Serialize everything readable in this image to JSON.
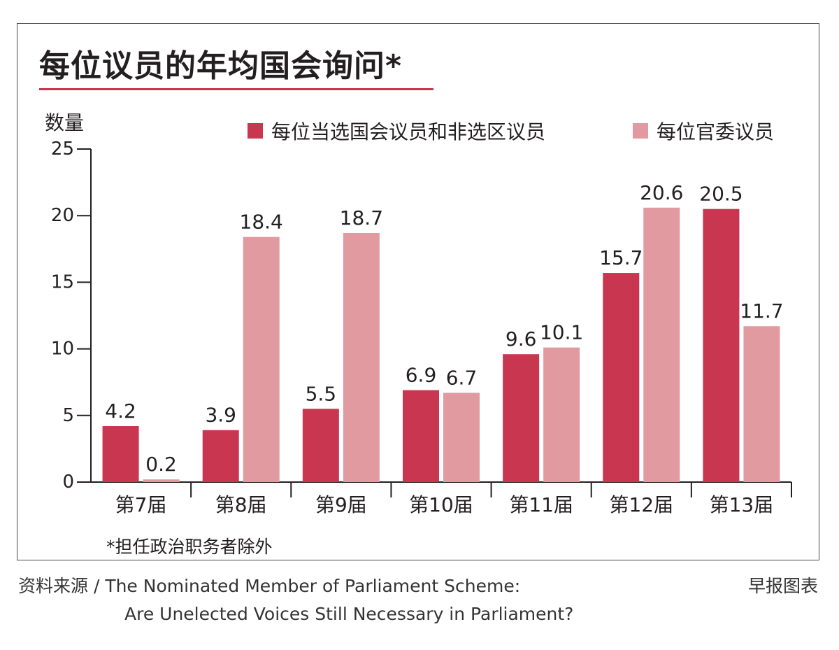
{
  "chart_data": {
    "type": "bar",
    "title": "每位议员的年均国会询问*",
    "ylabel": "数量",
    "xlabel": "",
    "ylim": [
      0,
      25
    ],
    "yticks": [
      0,
      5,
      10,
      15,
      20,
      25
    ],
    "categories": [
      "第7届",
      "第8届",
      "第9届",
      "第10届",
      "第11届",
      "第12届",
      "第13届"
    ],
    "series": [
      {
        "name": "每位当选国会议员和非选区议员",
        "color": "#c8374f",
        "values": [
          4.2,
          3.9,
          5.5,
          6.9,
          9.6,
          15.7,
          20.5
        ]
      },
      {
        "name": "每位官委议员",
        "color": "#e29aa1",
        "values": [
          0.2,
          18.4,
          18.7,
          6.7,
          10.1,
          20.6,
          11.7
        ]
      }
    ],
    "legend_position": "top-right",
    "grid": false
  },
  "footnote": "*担任政治职务者除外",
  "source": {
    "line1": "资料来源 / The Nominated Member of Parliament Scheme:",
    "line2": "Are Unelected Voices Still Necessary in Parliament?"
  },
  "credit": "早报图表"
}
